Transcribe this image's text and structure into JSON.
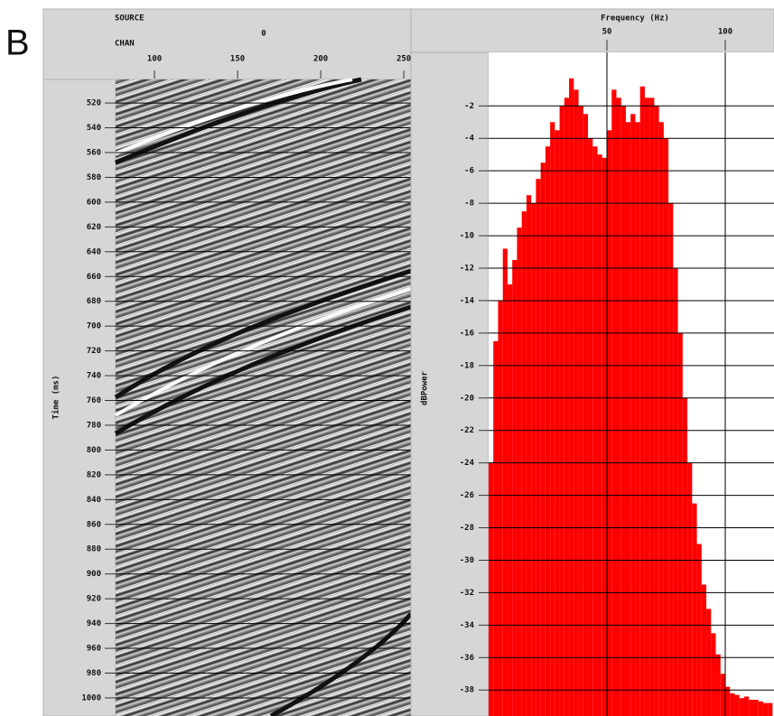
{
  "panel_label": "B",
  "chart_data": [
    {
      "type": "seismic",
      "source_label": "SOURCE",
      "source_value": 0,
      "channel_label": "CHAN",
      "ylabel": "Time (ms)",
      "xlim": [
        76.6,
        254.3
      ],
      "xticks": [
        100,
        150,
        200,
        250
      ],
      "ylim": [
        501,
        1014.6
      ],
      "y_inverted": true,
      "yticks": [
        520,
        540,
        560,
        580,
        600,
        620,
        640,
        660,
        680,
        700,
        720,
        740,
        760,
        780,
        800,
        820,
        840,
        860,
        880,
        900,
        920,
        940,
        960,
        980,
        1000
      ],
      "grid": true
    },
    {
      "type": "histogram",
      "xlabel": "Frequency (Hz)",
      "ylabel": "dBPower",
      "color": "#ff0000",
      "bins": [
        0,
        2,
        4,
        6,
        8,
        10,
        12,
        14,
        16,
        18,
        20,
        22,
        24,
        26,
        28,
        30,
        32,
        34,
        36,
        38,
        40,
        42,
        44,
        46,
        48,
        50,
        52,
        54,
        56,
        58,
        60,
        62,
        64,
        66,
        68,
        70,
        72,
        74,
        76,
        78,
        80,
        82,
        84,
        86,
        88,
        90,
        92,
        94,
        96,
        98,
        100,
        102,
        104,
        106,
        108,
        110,
        112,
        114,
        116,
        118,
        120
      ],
      "values": [
        -24,
        -16.5,
        -14,
        -10.8,
        -13,
        -11.5,
        -9.5,
        -8.5,
        -7.5,
        -8,
        -6.5,
        -5.5,
        -4.5,
        -3,
        -3.5,
        -2,
        -1.5,
        -0.3,
        -1,
        -2,
        -2.5,
        -4,
        -4.5,
        -5,
        -5.2,
        -3.5,
        -1,
        -1.5,
        -2,
        -3,
        -2.5,
        -3,
        -0.8,
        -1.5,
        -1.5,
        -2,
        -3,
        -4,
        -8,
        -12,
        -16,
        -20,
        -24,
        -26.5,
        -29,
        -31.5,
        -33,
        -34.5,
        -35.8,
        -37,
        -37.8,
        -38.2,
        -38.3,
        -38.5,
        -38.4,
        -38.6,
        -38.6,
        -38.7,
        -38.8,
        -38.8
      ],
      "xlim": [
        0,
        120.6
      ],
      "xticks": [
        50,
        100
      ],
      "ylim": [
        -39.6,
        1.3
      ],
      "yticks": [
        -38,
        -36,
        -34,
        -32,
        -30,
        -28,
        -26,
        -24,
        -22,
        -20,
        -18,
        -16,
        -14,
        -12,
        -10,
        -8,
        -6,
        -4,
        -2
      ],
      "grid": true
    }
  ]
}
